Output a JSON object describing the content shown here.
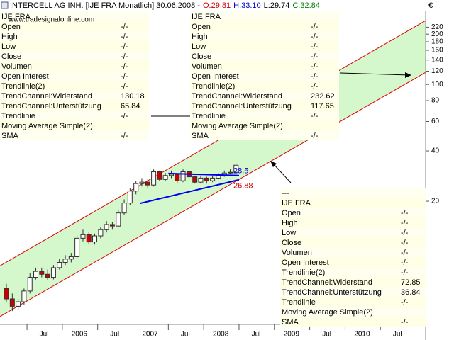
{
  "chart_data": {
    "type": "candlestick",
    "title": "INTERCELL AG INH. [IJE FRA Monatlich] 30.06.2008 -",
    "ohlc_labels": [
      "O:29.81",
      "H:33.10",
      "L:29.74",
      "C:32.84"
    ],
    "ohlc_colors": [
      "#cc0000",
      "#0000cc",
      "#000000",
      "#008000"
    ],
    "currency": "€",
    "watermark": "www.tradesignalonline.com",
    "log_y": true,
    "xlim": [
      2005.118,
      2011.14
    ],
    "ylim": [
      3.66,
      273.8
    ],
    "yticks": [
      20,
      40,
      60,
      80,
      100,
      120,
      140,
      160,
      180,
      200,
      220
    ],
    "xticks": [
      {
        "value": 2005.5,
        "label": "Jul"
      },
      2006,
      {
        "value": 2006.5,
        "label": "Jul"
      },
      2007,
      {
        "value": 2007.5,
        "label": "Jul"
      },
      2008,
      {
        "value": 2008.5,
        "label": "Jul"
      },
      2009,
      {
        "value": 2009.5,
        "label": "Jul"
      },
      2010,
      {
        "value": 2010.5,
        "label": "Jul"
      }
    ],
    "x": [
      2005.208,
      2005.292,
      2005.375,
      2005.458,
      2005.542,
      2005.625,
      2005.708,
      2005.792,
      2005.875,
      2005.958,
      2006.042,
      2006.125,
      2006.208,
      2006.292,
      2006.375,
      2006.458,
      2006.542,
      2006.625,
      2006.708,
      2006.792,
      2006.875,
      2006.958,
      2007.042,
      2007.125,
      2007.208,
      2007.292,
      2007.375,
      2007.458,
      2007.542,
      2007.625,
      2007.708,
      2007.792,
      2007.875,
      2007.958,
      2008.042,
      2008.125,
      2008.208,
      2008.292,
      2008.375,
      2008.458
    ],
    "open": [
      6.0,
      5.2,
      4.7,
      5.0,
      5.8,
      7.0,
      7.6,
      7.3,
      7.0,
      8.0,
      8.6,
      9.0,
      9.3,
      12.0,
      12.6,
      11.4,
      12.4,
      13.5,
      14.5,
      14.2,
      17.0,
      19.5,
      23.0,
      25.5,
      26.0,
      25.0,
      30.0,
      27.0,
      28.5,
      29.0,
      26.5,
      30.0,
      28.0,
      26.0,
      27.5,
      26.5,
      27.5,
      28.5,
      29.5,
      29.81
    ],
    "high": [
      6.4,
      5.6,
      5.2,
      6.0,
      7.4,
      8.0,
      8.0,
      7.8,
      8.3,
      9.0,
      9.5,
      9.8,
      12.5,
      13.5,
      13.0,
      12.8,
      14.0,
      15.2,
      15.0,
      17.8,
      20.5,
      24.0,
      26.5,
      27.5,
      27.0,
      31.0,
      30.5,
      29.5,
      30.5,
      29.5,
      31.0,
      30.5,
      28.5,
      28.5,
      28.0,
      28.5,
      29.5,
      30.5,
      31.0,
      33.1
    ],
    "low": [
      5.0,
      4.4,
      4.5,
      4.8,
      5.6,
      6.8,
      7.0,
      6.7,
      6.8,
      7.8,
      8.3,
      8.6,
      9.0,
      11.5,
      11.0,
      11.0,
      12.0,
      13.0,
      13.5,
      14.0,
      16.5,
      19.0,
      22.0,
      24.5,
      24.0,
      24.5,
      26.5,
      26.5,
      27.5,
      25.5,
      26.0,
      27.5,
      25.5,
      25.5,
      25.5,
      26.0,
      27.0,
      28.0,
      29.0,
      29.74
    ],
    "close": [
      5.2,
      4.7,
      5.0,
      5.8,
      7.0,
      7.6,
      7.3,
      7.0,
      8.0,
      8.6,
      9.0,
      9.3,
      12.0,
      12.6,
      11.4,
      12.4,
      13.5,
      14.5,
      14.2,
      17.0,
      19.5,
      23.0,
      25.5,
      26.0,
      25.0,
      30.0,
      27.0,
      28.5,
      29.0,
      26.5,
      30.0,
      28.0,
      26.0,
      27.5,
      26.5,
      27.5,
      28.5,
      29.5,
      29.8,
      32.84
    ],
    "up_color": "#ffffff",
    "down_color": "#cc0000",
    "channel": {
      "x": [
        2005.118,
        2011.14
      ],
      "upper": [
        8.2,
        241
      ],
      "lower": [
        4.08,
        118
      ],
      "color": "#dd0000",
      "fill": "#d4f7cc"
    },
    "trendlines": [
      {
        "x": [
          2007.5,
          2008.5
        ],
        "y": [
          29.3,
          28.5
        ],
        "label": 28.5,
        "color": "#0000ee",
        "label_color": "#0000cc"
      },
      {
        "x": [
          2007.1,
          2008.5
        ],
        "y": [
          19.4,
          26.88
        ],
        "label": 26.88,
        "color": "#0000ee",
        "label_color": "#cc0000"
      }
    ]
  },
  "panels": [
    {
      "title": "IJE FRA",
      "rows": [
        [
          "Open",
          "-/-"
        ],
        [
          "High",
          "-/-"
        ],
        [
          "Low",
          "-/-"
        ],
        [
          "Close",
          "-/-"
        ],
        [
          "Volumen",
          "-/-"
        ],
        [
          "Open Interest",
          "-/-"
        ],
        [
          "Trendlinie(2)",
          "-/-"
        ],
        [
          "TrendChannel:Widerstand",
          "130.18"
        ],
        [
          "TrendChannel:Unterstützung",
          "65.84"
        ],
        [
          "Trendlinie",
          "-/-"
        ],
        [
          "Moving Average Simple(2)"
        ],
        [
          "SMA",
          "-/-"
        ]
      ]
    },
    {
      "title": "IJE FRA",
      "rows": [
        [
          "Open",
          "-/-"
        ],
        [
          "High",
          "-/-"
        ],
        [
          "Low",
          "-/-"
        ],
        [
          "Close",
          "-/-"
        ],
        [
          "Volumen",
          "-/-"
        ],
        [
          "Open Interest",
          "-/-"
        ],
        [
          "Trendlinie(2)",
          "-/-"
        ],
        [
          "TrendChannel:Widerstand",
          "232.62"
        ],
        [
          "TrendChannel:Unterstützung",
          "117.65"
        ],
        [
          "Trendlinie",
          "-/-"
        ],
        [
          "Moving Average Simple(2)"
        ],
        [
          "SMA",
          "-/-"
        ]
      ]
    },
    {
      "header": "---",
      "title": "IJE FRA",
      "rows": [
        [
          "Open",
          "-/-"
        ],
        [
          "High",
          "-/-"
        ],
        [
          "Low",
          "-/-"
        ],
        [
          "Close",
          "-/-"
        ],
        [
          "Volumen",
          "-/-"
        ],
        [
          "Open Interest",
          "-/-"
        ],
        [
          "Trendlinie(2)",
          "-/-"
        ],
        [
          "TrendChannel:Widerstand",
          "72.85"
        ],
        [
          "TrendChannel:Unterstützung",
          "36.84"
        ],
        [
          "Trendlinie",
          "-/-"
        ],
        [
          "Moving Average Simple(2)"
        ],
        [
          "SMA",
          "-/-"
        ]
      ]
    }
  ]
}
